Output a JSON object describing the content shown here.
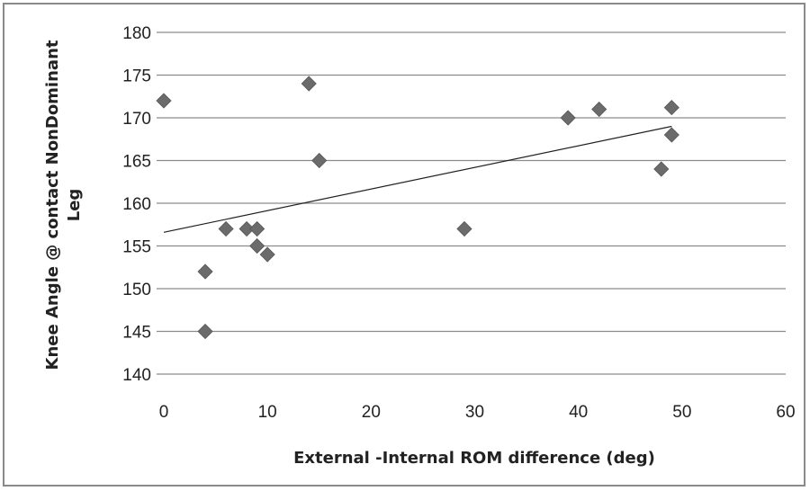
{
  "chart_data": {
    "type": "scatter",
    "title": "",
    "xlabel": "External -Internal ROM difference (deg)",
    "ylabel_lines": [
      "Knee Angle @ contact NonDominant",
      "Leg"
    ],
    "xlim": [
      0,
      60
    ],
    "ylim": [
      140,
      180
    ],
    "x_ticks": [
      0,
      10,
      20,
      30,
      40,
      50,
      60
    ],
    "y_ticks": [
      140,
      145,
      150,
      155,
      160,
      165,
      170,
      175,
      180
    ],
    "grid": "horizontal",
    "legend": "none",
    "marker": "diamond",
    "marker_color": "#6b6b6b",
    "trendline": {
      "type": "linear",
      "x_range": [
        0,
        49
      ],
      "y_start": 156.6,
      "y_end": 169.0,
      "color": "#222222"
    },
    "series": [
      {
        "points": [
          [
            0,
            172
          ],
          [
            4,
            152
          ],
          [
            4,
            145
          ],
          [
            6,
            157
          ],
          [
            8,
            157
          ],
          [
            9,
            157
          ],
          [
            9,
            155
          ],
          [
            10,
            154
          ],
          [
            14,
            174
          ],
          [
            15,
            165
          ],
          [
            29,
            157
          ],
          [
            39,
            170
          ],
          [
            42,
            171
          ],
          [
            48,
            164
          ],
          [
            49,
            171.2
          ],
          [
            49,
            168
          ]
        ]
      }
    ]
  }
}
